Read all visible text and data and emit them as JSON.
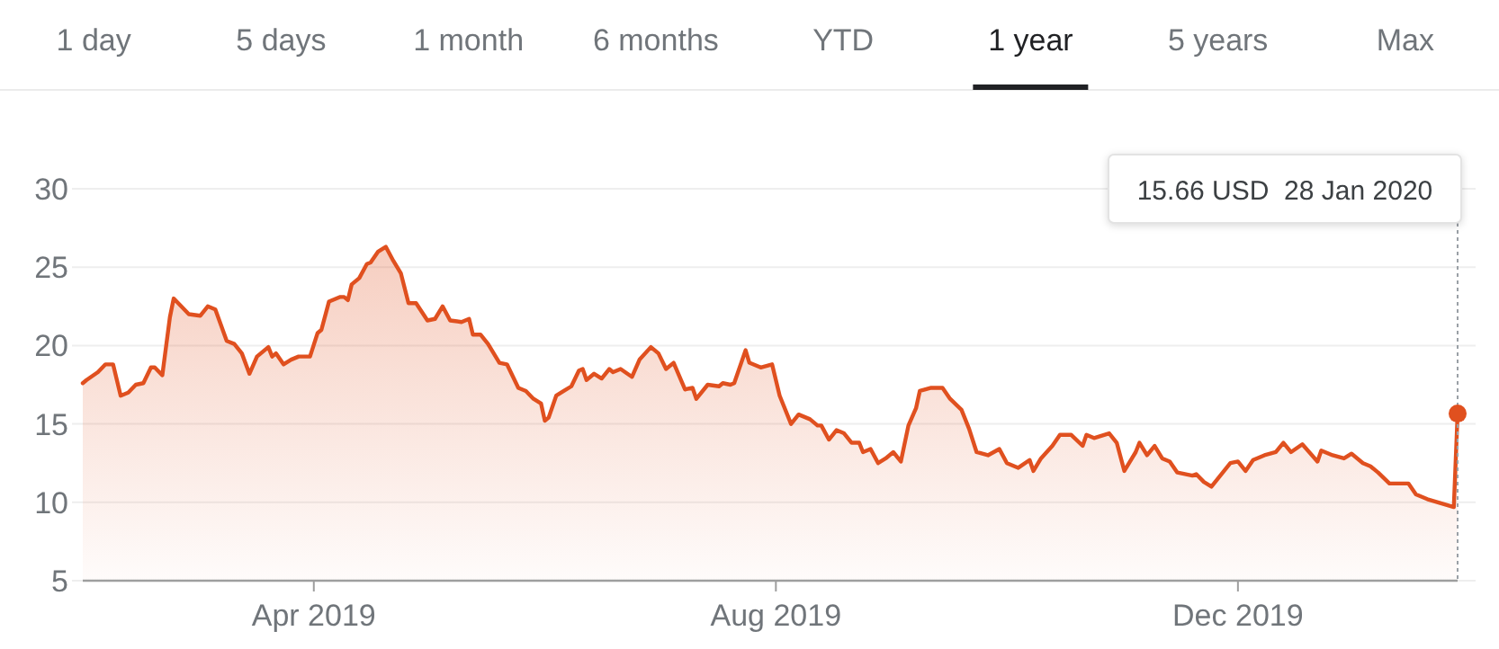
{
  "chart_data": {
    "type": "area",
    "xlim": [
      "2019-01-30",
      "2020-01-28"
    ],
    "ylim": [
      5,
      30
    ],
    "yticks": [
      5,
      10,
      15,
      20,
      25,
      30
    ],
    "xticks": [
      {
        "value": "2019-04-01",
        "label": "Apr 2019"
      },
      {
        "value": "2019-08-01",
        "label": "Aug 2019"
      },
      {
        "value": "2019-12-01",
        "label": "Dec 2019"
      }
    ],
    "grid": "y",
    "marker": "none",
    "annotations": [
      "1 day",
      "5 days",
      "1 month",
      "6 months",
      "YTD",
      "1 year",
      "5 years",
      "Max",
      "15.66 USD  28 Jan 2020"
    ],
    "x": [
      "2019-01-30",
      "2019-01-31",
      "2019-02-03",
      "2019-02-05",
      "2019-02-07",
      "2019-02-09",
      "2019-02-11",
      "2019-02-13",
      "2019-02-15",
      "2019-02-17",
      "2019-02-18",
      "2019-02-20",
      "2019-02-22",
      "2019-02-23",
      "2019-02-27",
      "2019-03-02",
      "2019-03-04",
      "2019-03-06",
      "2019-03-09",
      "2019-03-11",
      "2019-03-13",
      "2019-03-15",
      "2019-03-17",
      "2019-03-20",
      "2019-03-21",
      "2019-03-22",
      "2019-03-24",
      "2019-03-26",
      "2019-03-28",
      "2019-03-31",
      "2019-04-02",
      "2019-04-03",
      "2019-04-05",
      "2019-04-08",
      "2019-04-09",
      "2019-04-10",
      "2019-04-11",
      "2019-04-13",
      "2019-04-15",
      "2019-04-16",
      "2019-04-18",
      "2019-04-20",
      "2019-04-22",
      "2019-04-24",
      "2019-04-26",
      "2019-04-28",
      "2019-05-01",
      "2019-05-03",
      "2019-05-05",
      "2019-05-07",
      "2019-05-10",
      "2019-05-12",
      "2019-05-13",
      "2019-05-15",
      "2019-05-17",
      "2019-05-20",
      "2019-05-22",
      "2019-05-25",
      "2019-05-27",
      "2019-05-29",
      "2019-05-31",
      "2019-06-01",
      "2019-06-02",
      "2019-06-04",
      "2019-06-06",
      "2019-06-08",
      "2019-06-10",
      "2019-06-11",
      "2019-06-12",
      "2019-06-14",
      "2019-06-16",
      "2019-06-18",
      "2019-06-19",
      "2019-06-21",
      "2019-06-24",
      "2019-06-26",
      "2019-06-29",
      "2019-07-01",
      "2019-07-03",
      "2019-07-05",
      "2019-07-08",
      "2019-07-10",
      "2019-07-11",
      "2019-07-14",
      "2019-07-17",
      "2019-07-18",
      "2019-07-20",
      "2019-07-21",
      "2019-07-24",
      "2019-07-25",
      "2019-07-28",
      "2019-07-31",
      "2019-08-02",
      "2019-08-05",
      "2019-08-07",
      "2019-08-10",
      "2019-08-12",
      "2019-08-13",
      "2019-08-15",
      "2019-08-17",
      "2019-08-19",
      "2019-08-21",
      "2019-08-23",
      "2019-08-24",
      "2019-08-26",
      "2019-08-28",
      "2019-08-30",
      "2019-09-01",
      "2019-09-03",
      "2019-09-05",
      "2019-09-07",
      "2019-09-08",
      "2019-09-11",
      "2019-09-14",
      "2019-09-16",
      "2019-09-19",
      "2019-09-21",
      "2019-09-23",
      "2019-09-26",
      "2019-09-29",
      "2019-10-01",
      "2019-10-04",
      "2019-10-07",
      "2019-10-08",
      "2019-10-10",
      "2019-10-13",
      "2019-10-15",
      "2019-10-18",
      "2019-10-21",
      "2019-10-22",
      "2019-10-24",
      "2019-10-28",
      "2019-10-30",
      "2019-11-01",
      "2019-11-04",
      "2019-11-05",
      "2019-11-07",
      "2019-11-09",
      "2019-11-11",
      "2019-11-13",
      "2019-11-15",
      "2019-11-19",
      "2019-11-20",
      "2019-11-22",
      "2019-11-24",
      "2019-11-27",
      "2019-11-29",
      "2019-12-01",
      "2019-12-03",
      "2019-12-05",
      "2019-12-08",
      "2019-12-11",
      "2019-12-13",
      "2019-12-15",
      "2019-12-18",
      "2019-12-22",
      "2019-12-23",
      "2019-12-26",
      "2019-12-29",
      "2019-12-31",
      "2020-01-03",
      "2020-01-05",
      "2020-01-07",
      "2020-01-10",
      "2020-01-12",
      "2020-01-15",
      "2020-01-17",
      "2020-01-20",
      "2020-01-27",
      "2020-01-28"
    ],
    "series": [
      {
        "color": "#e0501f",
        "values": [
          17.6,
          17.8,
          18.3,
          18.8,
          18.8,
          16.8,
          17.0,
          17.5,
          17.6,
          18.6,
          18.6,
          18.1,
          21.8,
          23.0,
          22.0,
          21.9,
          22.5,
          22.3,
          20.3,
          20.1,
          19.5,
          18.2,
          19.3,
          19.9,
          19.3,
          19.5,
          18.8,
          19.1,
          19.3,
          19.3,
          20.8,
          21.0,
          22.8,
          23.1,
          23.1,
          22.9,
          23.9,
          24.3,
          25.2,
          25.3,
          26.0,
          26.3,
          25.4,
          24.6,
          22.7,
          22.7,
          21.6,
          21.7,
          22.5,
          21.6,
          21.5,
          21.7,
          20.7,
          20.7,
          20.1,
          18.9,
          18.8,
          17.3,
          17.1,
          16.6,
          16.3,
          15.2,
          15.4,
          16.8,
          17.1,
          17.4,
          18.4,
          18.5,
          17.8,
          18.2,
          17.9,
          18.5,
          18.3,
          18.5,
          18.0,
          19.1,
          19.9,
          19.5,
          18.5,
          18.9,
          17.2,
          17.3,
          16.6,
          17.5,
          17.4,
          17.6,
          17.5,
          17.6,
          19.7,
          18.9,
          18.6,
          18.8,
          16.8,
          15.0,
          15.6,
          15.3,
          14.9,
          14.9,
          14.0,
          14.6,
          14.4,
          13.8,
          13.8,
          13.2,
          13.4,
          12.5,
          12.8,
          13.2,
          12.6,
          14.9,
          16.0,
          17.1,
          17.3,
          17.3,
          16.6,
          15.9,
          14.7,
          13.2,
          13.0,
          13.4,
          12.5,
          12.2,
          12.7,
          12.0,
          12.8,
          13.6,
          14.3,
          14.3,
          13.6,
          14.3,
          14.1,
          14.4,
          13.8,
          12.0,
          13.2,
          13.8,
          13.0,
          13.6,
          12.8,
          12.6,
          11.9,
          11.7,
          11.8,
          11.3,
          11.0,
          11.9,
          12.5,
          12.6,
          12.0,
          12.7,
          13.0,
          13.2,
          13.8,
          13.2,
          13.7,
          12.6,
          13.3,
          13.0,
          12.8,
          13.1,
          12.5,
          12.3,
          11.9,
          11.2,
          11.2,
          11.2,
          10.5,
          10.2,
          9.7,
          15.66
        ]
      }
    ]
  }
}
